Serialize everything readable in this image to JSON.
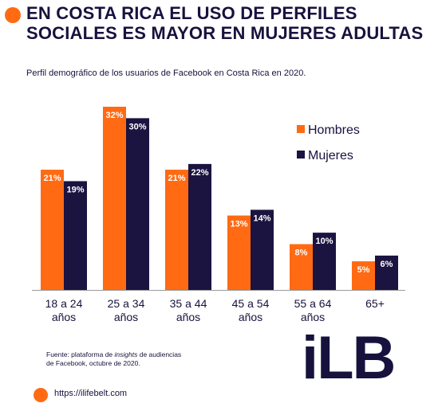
{
  "header": {
    "title": "EN COSTA RICA EL USO DE PERFILES SOCIALES ES MAYOR EN MUJERES ADULTAS",
    "subtitle": "Perfil demográfico de los usuarios de Facebook en Costa Rica en 2020."
  },
  "colors": {
    "hombres": "#ff6a13",
    "mujeres": "#1b1340",
    "accent": "#ff6a13",
    "text": "#17123d"
  },
  "chart_data": {
    "type": "bar",
    "categories": [
      [
        "18 a 24",
        "años"
      ],
      [
        "25 a 34",
        "años"
      ],
      [
        "35 a 44",
        "años"
      ],
      [
        "45 a 54",
        "años"
      ],
      [
        "55 a 64",
        "años"
      ],
      [
        "65+"
      ]
    ],
    "series": [
      {
        "name": "Hombres",
        "values": [
          21,
          32,
          21,
          13,
          8,
          5
        ]
      },
      {
        "name": "Mujeres",
        "values": [
          19,
          30,
          22,
          14,
          10,
          6
        ]
      }
    ],
    "value_suffix": "%",
    "ylim": [
      0,
      32
    ],
    "legend_position": "top-right",
    "grid": false
  },
  "footer": {
    "source_prefix": "Fuente: plataforma de ",
    "source_italic": "insights",
    "source_suffix": " de audiencias de Facebook, octubre de 2020.",
    "logo": "iLB",
    "url": "https://ilifebelt.com"
  }
}
